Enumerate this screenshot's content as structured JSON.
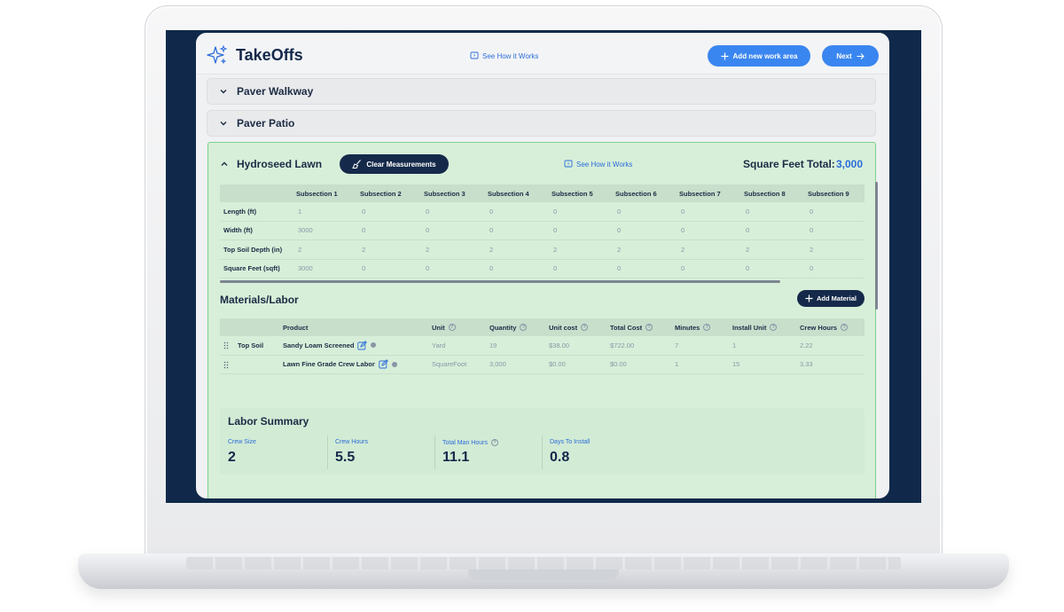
{
  "app": {
    "logo_text": "TakeOffs",
    "see_how_label": "See How it Works",
    "add_area_label": "Add new work area",
    "next_label": "Next"
  },
  "work_areas": [
    {
      "name": "Paver Walkway",
      "expanded": false
    },
    {
      "name": "Paver Patio",
      "expanded": false
    }
  ],
  "hydroseed": {
    "name": "Hydroseed Lawn",
    "clear_label": "Clear Measurements",
    "see_how_label": "See How it Works",
    "sqft_label": "Square Feet Total:",
    "sqft_value": "3,000",
    "measurements": {
      "columns": [
        "Subsection 1",
        "Subsection 2",
        "Subsection 3",
        "Subsection 4",
        "Subsection 5",
        "Subsection 6",
        "Subsection 7",
        "Subsection 8",
        "Subsection 9"
      ],
      "rows": [
        {
          "label": "Length (ft)",
          "values": [
            "1",
            "0",
            "0",
            "0",
            "0",
            "0",
            "0",
            "0",
            "0"
          ]
        },
        {
          "label": "Width (ft)",
          "values": [
            "3000",
            "0",
            "0",
            "0",
            "0",
            "0",
            "0",
            "0",
            "0"
          ]
        },
        {
          "label": "Top Soil Depth (in)",
          "values": [
            "2",
            "2",
            "2",
            "2",
            "2",
            "2",
            "2",
            "2",
            "2"
          ]
        },
        {
          "label": "Square Feet (sqft)",
          "values": [
            "3000",
            "0",
            "0",
            "0",
            "0",
            "0",
            "0",
            "0",
            "0"
          ]
        }
      ]
    },
    "materials": {
      "title": "Materials/Labor",
      "add_label": "Add Material",
      "headers": {
        "product": "Product",
        "unit": "Unit",
        "quantity": "Quantity",
        "unit_cost": "Unit cost",
        "total_cost": "Total Cost",
        "minutes": "Minutes",
        "install_unit": "Install Unit",
        "crew_hours": "Crew Hours"
      },
      "rows": [
        {
          "category": "Top Soil",
          "product": "Sandy Loam Screened",
          "unit": "Yard",
          "quantity": "19",
          "unit_cost": "$38.00",
          "total_cost": "$722.00",
          "minutes": "7",
          "install_unit": "1",
          "crew_hours": "2.22"
        },
        {
          "category": "",
          "product": "Lawn Fine Grade Crew Labor",
          "unit": "SquareFoot",
          "quantity": "3,000",
          "unit_cost": "$0.00",
          "total_cost": "$0.00",
          "minutes": "1",
          "install_unit": "15",
          "crew_hours": "3.33"
        }
      ]
    },
    "labor_summary": {
      "title": "Labor Summary",
      "items": [
        {
          "label": "Crew Size",
          "value": "2"
        },
        {
          "label": "Crew Hours",
          "value": "5.5"
        },
        {
          "label": "Total Man Hours",
          "value": "11.1"
        },
        {
          "label": "Days To Install",
          "value": "0.8"
        }
      ]
    }
  },
  "colors": {
    "accent": "#3a86f0",
    "navy": "#152a4a",
    "section_bg": "#d7efd9",
    "section_border": "#7bd08a"
  }
}
